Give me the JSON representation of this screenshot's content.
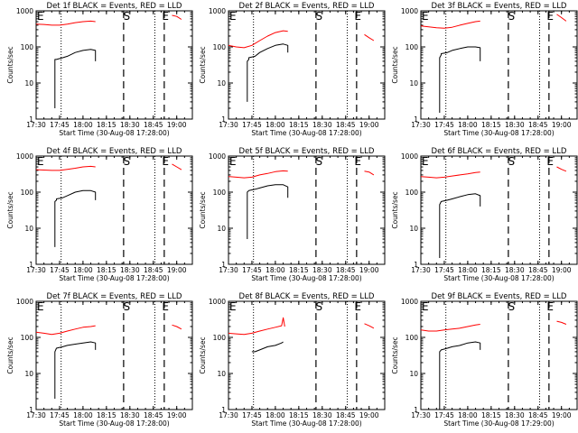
{
  "figure": {
    "colors": {
      "events": "#000000",
      "lld": "#ff0000",
      "axes": "#000000",
      "background": "#ffffff"
    },
    "marker_labels": {
      "eclipse": "E",
      "saa": "S"
    }
  },
  "chart_data": [
    {
      "type": "line",
      "title": "Det 1f BLACK = Events, RED = LLD",
      "xlabel": "Start Time (30-Aug-08 17:28:00)",
      "ylabel": "Counts/sec",
      "yscale": "log",
      "ylim": [
        1,
        1000
      ],
      "xlim": [
        "17:30",
        "19:10"
      ],
      "x_tick_labels": [
        "17:30",
        "17:45",
        "18:00",
        "18:15",
        "18:30",
        "18:45",
        "19:00"
      ],
      "y_tick_labels": [
        "1000",
        "100",
        "10",
        "1"
      ],
      "markers": {
        "eclipse": [
          "17:30",
          "18:50"
        ],
        "saa": "18:28"
      },
      "dotted_lines": [
        "17:46",
        "18:46"
      ],
      "dashed_lines": [
        "18:26",
        "18:52"
      ],
      "series": [
        {
          "role": "lld",
          "x": [
            "17:30",
            "17:35",
            "17:40",
            "17:45",
            "17:50",
            "17:55",
            "18:00",
            "18:05",
            "18:08"
          ],
          "y": [
            430,
            420,
            400,
            400,
            430,
            470,
            500,
            520,
            500
          ]
        },
        {
          "role": "lld",
          "x": [
            "18:57",
            "19:00",
            "19:03"
          ],
          "y": [
            750,
            700,
            580
          ]
        },
        {
          "role": "events",
          "x": [
            "17:42",
            "17:42",
            "17:43",
            "17:43",
            "17:47",
            "17:50",
            "17:55",
            "18:00",
            "18:05",
            "18:08",
            "18:08"
          ],
          "y": [
            2,
            45,
            45,
            45,
            50,
            55,
            70,
            80,
            85,
            80,
            40
          ]
        }
      ]
    },
    {
      "type": "line",
      "title": "Det 2f BLACK = Events, RED = LLD",
      "xlabel": "Start Time (30-Aug-08 17:28:00)",
      "ylabel": "Counts/sec",
      "yscale": "log",
      "ylim": [
        1,
        1000
      ],
      "xlim": [
        "17:30",
        "19:10"
      ],
      "x_tick_labels": [
        "17:30",
        "17:45",
        "18:00",
        "18:15",
        "18:30",
        "18:45",
        "19:00"
      ],
      "y_tick_labels": [
        "1000",
        "100",
        "10",
        "1"
      ],
      "markers": {
        "eclipse": [
          "17:30",
          "18:50"
        ],
        "saa": "18:28"
      },
      "dotted_lines": [
        "17:46",
        "18:46"
      ],
      "dashed_lines": [
        "18:26",
        "18:52"
      ],
      "series": [
        {
          "role": "lld",
          "x": [
            "17:30",
            "17:35",
            "17:40",
            "17:45",
            "17:50",
            "17:55",
            "18:00",
            "18:05",
            "18:08"
          ],
          "y": [
            110,
            100,
            95,
            110,
            150,
            200,
            250,
            280,
            270
          ]
        },
        {
          "role": "lld",
          "x": [
            "18:57",
            "19:00",
            "19:03"
          ],
          "y": [
            220,
            180,
            150
          ]
        },
        {
          "role": "events",
          "x": [
            "17:42",
            "17:42",
            "17:43",
            "17:43",
            "17:47",
            "17:50",
            "17:55",
            "18:00",
            "18:05",
            "18:08",
            "18:08"
          ],
          "y": [
            3,
            40,
            45,
            50,
            55,
            70,
            90,
            110,
            120,
            110,
            70
          ]
        }
      ]
    },
    {
      "type": "line",
      "title": "Det 3f BLACK = Events, RED = LLD",
      "xlabel": "Start Time (30-Aug-08 17:28:00)",
      "ylabel": "Counts/sec",
      "yscale": "log",
      "ylim": [
        1,
        1000
      ],
      "xlim": [
        "17:30",
        "19:10"
      ],
      "x_tick_labels": [
        "17:30",
        "17:45",
        "18:00",
        "18:15",
        "18:30",
        "18:45",
        "19:00"
      ],
      "y_tick_labels": [
        "1000",
        "100",
        "10",
        "1"
      ],
      "markers": {
        "eclipse": [
          "17:30",
          "18:50"
        ],
        "saa": "18:28"
      },
      "dotted_lines": [
        "17:46",
        "18:46"
      ],
      "dashed_lines": [
        "18:26",
        "18:52"
      ],
      "series": [
        {
          "role": "lld",
          "x": [
            "17:30",
            "17:35",
            "17:40",
            "17:45",
            "17:50",
            "17:55",
            "18:00",
            "18:05",
            "18:08"
          ],
          "y": [
            380,
            360,
            340,
            330,
            350,
            400,
            450,
            500,
            520
          ]
        },
        {
          "role": "lld",
          "x": [
            "18:57",
            "19:00",
            "19:03"
          ],
          "y": [
            800,
            650,
            520
          ]
        },
        {
          "role": "events",
          "x": [
            "17:42",
            "17:42",
            "17:43",
            "17:43",
            "17:47",
            "17:50",
            "17:55",
            "18:00",
            "18:05",
            "18:08",
            "18:08"
          ],
          "y": [
            1.5,
            50,
            60,
            65,
            70,
            80,
            90,
            100,
            100,
            95,
            40
          ]
        }
      ]
    },
    {
      "type": "line",
      "title": "Det 4f BLACK = Events, RED = LLD",
      "xlabel": "Start Time (30-Aug-08 17:28:00)",
      "ylabel": "Counts/sec",
      "yscale": "log",
      "ylim": [
        1,
        1000
      ],
      "xlim": [
        "17:30",
        "19:10"
      ],
      "x_tick_labels": [
        "17:30",
        "17:45",
        "18:00",
        "18:15",
        "18:30",
        "18:45",
        "19:00"
      ],
      "y_tick_labels": [
        "1000",
        "100",
        "10",
        "1"
      ],
      "markers": {
        "eclipse": [
          "17:30",
          "18:50"
        ],
        "saa": "18:28"
      },
      "dotted_lines": [
        "17:46",
        "18:46"
      ],
      "dashed_lines": [
        "18:26",
        "18:52"
      ],
      "series": [
        {
          "role": "lld",
          "x": [
            "17:30",
            "17:35",
            "17:40",
            "17:45",
            "17:50",
            "17:55",
            "18:00",
            "18:05",
            "18:08"
          ],
          "y": [
            420,
            410,
            400,
            400,
            430,
            460,
            500,
            520,
            500
          ]
        },
        {
          "role": "lld",
          "x": [
            "18:57",
            "19:00",
            "19:03"
          ],
          "y": [
            600,
            500,
            420
          ]
        },
        {
          "role": "events",
          "x": [
            "17:42",
            "17:42",
            "17:43",
            "17:43",
            "17:47",
            "17:50",
            "17:55",
            "18:00",
            "18:05",
            "18:08",
            "18:08"
          ],
          "y": [
            3,
            55,
            60,
            65,
            70,
            80,
            100,
            110,
            110,
            100,
            60
          ]
        }
      ]
    },
    {
      "type": "line",
      "title": "Det 5f BLACK = Events, RED = LLD",
      "xlabel": "Start Time (30-Aug-08 17:28:00)",
      "ylabel": "Counts/sec",
      "yscale": "log",
      "ylim": [
        1,
        1000
      ],
      "xlim": [
        "17:30",
        "19:10"
      ],
      "x_tick_labels": [
        "17:30",
        "17:45",
        "18:00",
        "18:15",
        "18:30",
        "18:45",
        "19:00"
      ],
      "y_tick_labels": [
        "1000",
        "100",
        "10",
        "1"
      ],
      "markers": {
        "eclipse": [
          "17:30",
          "18:50"
        ],
        "saa": "18:28"
      },
      "dotted_lines": [
        "17:46",
        "18:46"
      ],
      "dashed_lines": [
        "18:26",
        "18:52"
      ],
      "series": [
        {
          "role": "lld",
          "x": [
            "17:30",
            "17:35",
            "17:40",
            "17:45",
            "17:50",
            "17:55",
            "18:00",
            "18:05",
            "18:08"
          ],
          "y": [
            270,
            260,
            250,
            260,
            300,
            330,
            370,
            390,
            380
          ]
        },
        {
          "role": "lld",
          "x": [
            "18:57",
            "19:00",
            "19:03"
          ],
          "y": [
            380,
            360,
            300
          ]
        },
        {
          "role": "events",
          "x": [
            "17:42",
            "17:42",
            "17:43",
            "17:43",
            "17:47",
            "17:50",
            "17:55",
            "18:00",
            "18:05",
            "18:08",
            "18:08"
          ],
          "y": [
            5,
            100,
            110,
            110,
            120,
            130,
            150,
            160,
            160,
            140,
            70
          ]
        }
      ]
    },
    {
      "type": "line",
      "title": "Det 6f BLACK = Events, RED = LLD",
      "xlabel": "Start Time (30-Aug-08 17:28:00)",
      "ylabel": "Counts/sec",
      "yscale": "log",
      "ylim": [
        1,
        1000
      ],
      "xlim": [
        "17:30",
        "19:10"
      ],
      "x_tick_labels": [
        "17:30",
        "17:45",
        "18:00",
        "18:15",
        "18:30",
        "18:45",
        "19:00"
      ],
      "y_tick_labels": [
        "1000",
        "100",
        "10",
        "1"
      ],
      "markers": {
        "eclipse": [
          "17:30",
          "18:50"
        ],
        "saa": "18:28"
      },
      "dotted_lines": [
        "17:46",
        "18:46"
      ],
      "dashed_lines": [
        "18:26",
        "18:52"
      ],
      "series": [
        {
          "role": "lld",
          "x": [
            "17:30",
            "17:35",
            "17:40",
            "17:45",
            "17:50",
            "17:55",
            "18:00",
            "18:05",
            "18:08"
          ],
          "y": [
            270,
            260,
            250,
            260,
            280,
            300,
            320,
            350,
            360
          ]
        },
        {
          "role": "lld",
          "x": [
            "18:57",
            "19:00",
            "19:03"
          ],
          "y": [
            500,
            430,
            380
          ]
        },
        {
          "role": "events",
          "x": [
            "17:42",
            "17:42",
            "17:43",
            "17:43",
            "17:47",
            "17:50",
            "17:55",
            "18:00",
            "18:05",
            "18:08",
            "18:08"
          ],
          "y": [
            1.5,
            45,
            55,
            55,
            60,
            65,
            75,
            85,
            90,
            80,
            40
          ]
        }
      ]
    },
    {
      "type": "line",
      "title": "Det 7f BLACK = Events, RED = LLD",
      "xlabel": "Start Time (30-Aug-08 17:28:00)",
      "ylabel": "Counts/sec",
      "yscale": "log",
      "ylim": [
        1,
        1000
      ],
      "xlim": [
        "17:30",
        "19:10"
      ],
      "x_tick_labels": [
        "17:30",
        "17:45",
        "18:00",
        "18:15",
        "18:30",
        "18:45",
        "19:00"
      ],
      "y_tick_labels": [
        "1000",
        "100",
        "10",
        "1"
      ],
      "markers": {
        "eclipse": [
          "17:30",
          "18:50"
        ],
        "saa": "18:28"
      },
      "dotted_lines": [
        "17:46",
        "18:46"
      ],
      "dashed_lines": [
        "18:26",
        "18:52"
      ],
      "series": [
        {
          "role": "lld",
          "x": [
            "17:30",
            "17:35",
            "17:40",
            "17:45",
            "17:50",
            "17:55",
            "18:00",
            "18:05",
            "18:08"
          ],
          "y": [
            140,
            130,
            120,
            130,
            150,
            170,
            190,
            200,
            210
          ]
        },
        {
          "role": "lld",
          "x": [
            "18:57",
            "19:00",
            "19:03"
          ],
          "y": [
            220,
            200,
            170
          ]
        },
        {
          "role": "events",
          "x": [
            "17:42",
            "17:42",
            "17:43",
            "17:43",
            "17:47",
            "17:50",
            "17:55",
            "18:00",
            "18:05",
            "18:08",
            "18:08"
          ],
          "y": [
            2,
            40,
            50,
            50,
            55,
            60,
            65,
            70,
            75,
            70,
            45
          ]
        }
      ]
    },
    {
      "type": "line",
      "title": "Det 8f BLACK = Events, RED = LLD",
      "xlabel": "Start Time (30-Aug-08 17:28:00)",
      "ylabel": "Counts/sec",
      "yscale": "log",
      "ylim": [
        1,
        1000
      ],
      "xlim": [
        "17:30",
        "19:10"
      ],
      "x_tick_labels": [
        "17:30",
        "17:45",
        "18:00",
        "18:15",
        "18:30",
        "18:45",
        "19:00"
      ],
      "y_tick_labels": [
        "1000",
        "100",
        "10",
        "1"
      ],
      "markers": {
        "eclipse": [
          "17:30",
          "18:50"
        ],
        "saa": "18:28"
      },
      "dotted_lines": [
        "17:46",
        "18:46"
      ],
      "dashed_lines": [
        "18:26",
        "18:52"
      ],
      "series": [
        {
          "role": "lld",
          "x": [
            "17:30",
            "17:35",
            "17:40",
            "17:45",
            "17:50",
            "17:55",
            "18:00",
            "18:04",
            "18:05",
            "18:06"
          ],
          "y": [
            130,
            125,
            120,
            130,
            150,
            170,
            190,
            210,
            350,
            200
          ]
        },
        {
          "role": "lld",
          "x": [
            "18:57",
            "19:00",
            "19:03"
          ],
          "y": [
            240,
            210,
            180
          ]
        },
        {
          "role": "events",
          "x": [
            "17:45",
            "17:47",
            "17:50",
            "17:55",
            "18:00",
            "18:04",
            "18:05"
          ],
          "y": [
            40,
            40,
            45,
            55,
            60,
            70,
            75
          ]
        }
      ]
    },
    {
      "type": "line",
      "title": "Det 9f BLACK = Events, RED = LLD",
      "xlabel": "Start Time (30-Aug-08 17:29:00)",
      "ylabel": "Counts/sec",
      "yscale": "log",
      "ylim": [
        1,
        1000
      ],
      "xlim": [
        "17:30",
        "19:10"
      ],
      "x_tick_labels": [
        "17:30",
        "17:45",
        "18:00",
        "18:15",
        "18:30",
        "18:45",
        "19:00"
      ],
      "y_tick_labels": [
        "1000",
        "100",
        "10",
        "1"
      ],
      "markers": {
        "eclipse": [
          "17:30",
          "18:50"
        ],
        "saa": "18:28"
      },
      "dotted_lines": [
        "17:46",
        "18:46"
      ],
      "dashed_lines": [
        "18:26",
        "18:52"
      ],
      "series": [
        {
          "role": "lld",
          "x": [
            "17:30",
            "17:35",
            "17:40",
            "17:45",
            "17:50",
            "17:55",
            "18:00",
            "18:05",
            "18:08"
          ],
          "y": [
            160,
            150,
            150,
            160,
            170,
            180,
            200,
            220,
            230
          ]
        },
        {
          "role": "lld",
          "x": [
            "18:57",
            "19:00",
            "19:03"
          ],
          "y": [
            280,
            260,
            230
          ]
        },
        {
          "role": "events",
          "x": [
            "17:42",
            "17:42",
            "17:43",
            "17:43",
            "17:47",
            "17:50",
            "17:55",
            "18:00",
            "18:05",
            "18:08",
            "18:08"
          ],
          "y": [
            1,
            40,
            45,
            45,
            50,
            55,
            60,
            70,
            75,
            70,
            45
          ]
        }
      ]
    }
  ]
}
